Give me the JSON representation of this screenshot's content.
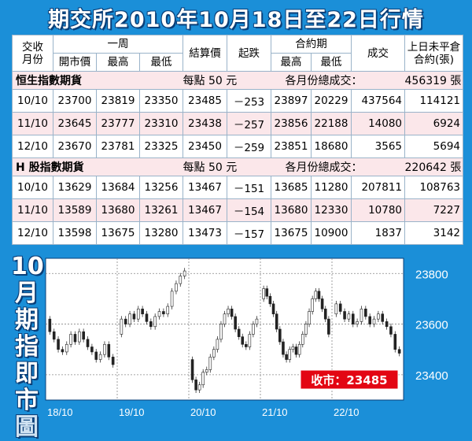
{
  "title": "期交所2010年10月18日至22日行情",
  "headers": {
    "month": "交收\n月份",
    "week": "一周",
    "open": "開市價",
    "high": "最高",
    "low": "最低",
    "settle": "結算價",
    "change": "起跌",
    "contract": "合約期",
    "c_high": "最高",
    "c_low": "最低",
    "volume": "成交",
    "oi": "上日未平倉\n合約(張)"
  },
  "sections": [
    {
      "name": "恒生指數期貨",
      "point": "每點 50 元",
      "total_label": "各月份總成交：",
      "total_value": "456319 張",
      "rows": [
        {
          "month": "10/10",
          "open": "23700",
          "high": "23819",
          "low": "23350",
          "settle": "23485",
          "change": "－253",
          "c_high": "23897",
          "c_low": "20229",
          "volume": "437564",
          "oi": "114121"
        },
        {
          "month": "11/10",
          "open": "23645",
          "high": "23777",
          "low": "23310",
          "settle": "23438",
          "change": "－257",
          "c_high": "23856",
          "c_low": "22188",
          "volume": "14080",
          "oi": "6924"
        },
        {
          "month": "12/10",
          "open": "23670",
          "high": "23781",
          "low": "23325",
          "settle": "23450",
          "change": "－259",
          "c_high": "23851",
          "c_low": "18680",
          "volume": "3565",
          "oi": "5694"
        }
      ]
    },
    {
      "name": "H 股指數期貨",
      "point": "每點 50 元",
      "total_label": "各月份總成交：",
      "total_value": "220642 張",
      "rows": [
        {
          "month": "10/10",
          "open": "13629",
          "high": "13684",
          "low": "13256",
          "settle": "13467",
          "change": "－151",
          "c_high": "13685",
          "c_low": "11280",
          "volume": "207811",
          "oi": "108763"
        },
        {
          "month": "11/10",
          "open": "13589",
          "high": "13680",
          "low": "13261",
          "settle": "13467",
          "change": "－154",
          "c_high": "13680",
          "c_low": "12330",
          "volume": "10780",
          "oi": "7227"
        },
        {
          "month": "12/10",
          "open": "13598",
          "high": "13675",
          "low": "13280",
          "settle": "13473",
          "change": "－157",
          "c_high": "13675",
          "c_low": "10900",
          "volume": "1837",
          "oi": "3142"
        }
      ]
    }
  ],
  "side_label": [
    "10",
    "月",
    "期",
    "指",
    "即",
    "市",
    "圖"
  ],
  "chart_data": {
    "type": "candlestick",
    "title": "10月期指即市圖",
    "x_ticks": [
      "18/10",
      "19/10",
      "20/10",
      "21/10",
      "22/10"
    ],
    "y_ticks": [
      23800,
      23600,
      23400
    ],
    "ylim": [
      23300,
      23860
    ],
    "close_label": "收市：23485",
    "close_value": 23485,
    "grid": true,
    "days": [
      {
        "date": "18/10",
        "path": [
          23620,
          23570,
          23540,
          23500,
          23490,
          23520,
          23560,
          23530,
          23570,
          23540,
          23510,
          23490,
          23460,
          23480,
          23520,
          23470,
          23440
        ]
      },
      {
        "date": "19/10",
        "path": [
          23560,
          23620,
          23600,
          23640,
          23620,
          23660,
          23640,
          23610,
          23590,
          23630,
          23650,
          23640,
          23670,
          23730,
          23760,
          23790,
          23810
        ]
      },
      {
        "date": "20/10",
        "path": [
          23460,
          23380,
          23340,
          23360,
          23410,
          23420,
          23470,
          23500,
          23540,
          23600,
          23640,
          23660,
          23630,
          23580,
          23550,
          23520,
          23510,
          23560,
          23600,
          23620
        ]
      },
      {
        "date": "21/10",
        "path": [
          23700,
          23740,
          23710,
          23680,
          23640,
          23580,
          23530,
          23480,
          23460,
          23500,
          23510,
          23480,
          23520,
          23560,
          23600,
          23650,
          23700,
          23730,
          23700,
          23660,
          23620,
          23560
        ]
      },
      {
        "date": "22/10",
        "path": [
          23640,
          23680,
          23650,
          23620,
          23640,
          23600,
          23610,
          23660,
          23630,
          23600,
          23620,
          23640,
          23610,
          23590,
          23560,
          23500,
          23485
        ]
      }
    ]
  }
}
